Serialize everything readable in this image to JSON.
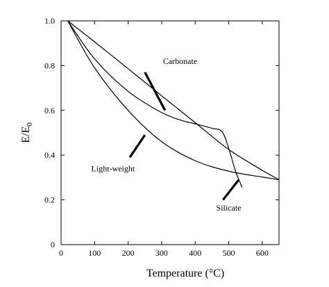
{
  "chart_data": {
    "type": "line",
    "title": "",
    "xlabel": "Temperature (°C)",
    "ylabel": {
      "base": "E/E",
      "subscript": "0"
    },
    "xlim": [
      0,
      650
    ],
    "ylim": [
      0,
      1.0
    ],
    "xticks": [
      0,
      100,
      200,
      300,
      400,
      500,
      600
    ],
    "yticks": [
      0,
      0.2,
      0.4,
      0.6,
      0.8,
      1.0
    ],
    "xtick_labels": [
      "0",
      "100",
      "200",
      "300",
      "400",
      "500",
      "600"
    ],
    "ytick_labels": [
      "0",
      "0.2",
      "0.4",
      "0.6",
      "0.8",
      "1.0"
    ],
    "grid": false,
    "legend": "none",
    "series": [
      {
        "name": "Carbonate",
        "x": [
          20,
          100,
          200,
          300,
          400,
          500,
          600,
          650
        ],
        "y": [
          1.0,
          0.906,
          0.786,
          0.665,
          0.545,
          0.425,
          0.332,
          0.29
        ]
      },
      {
        "name": "Silicate",
        "x": [
          20,
          100,
          200,
          300,
          360,
          400,
          450,
          480,
          500,
          520,
          540
        ],
        "y": [
          1.0,
          0.83,
          0.685,
          0.59,
          0.555,
          0.54,
          0.52,
          0.505,
          0.43,
          0.33,
          0.255
        ]
      },
      {
        "name": "Light-weight",
        "x": [
          20,
          100,
          200,
          300,
          400,
          500,
          600,
          650
        ],
        "y": [
          1.0,
          0.79,
          0.6,
          0.46,
          0.375,
          0.328,
          0.302,
          0.29
        ]
      }
    ],
    "annotations": [
      {
        "text": "Carbonate",
        "series": "Carbonate",
        "label_at": [
          355,
          0.82
        ],
        "leader_from": [
          250,
          0.77
        ],
        "leader_to": [
          310,
          0.6
        ]
      },
      {
        "text": "Light-weight",
        "series": "Light-weight",
        "label_at": [
          155,
          0.34
        ],
        "leader_from": [
          250,
          0.49
        ],
        "leader_to": [
          205,
          0.39
        ]
      },
      {
        "text": "Silicate",
        "series": "Silicate",
        "label_at": [
          500,
          0.165
        ],
        "leader_from": [
          530,
          0.29
        ],
        "leader_to": [
          483,
          0.2
        ]
      }
    ]
  }
}
